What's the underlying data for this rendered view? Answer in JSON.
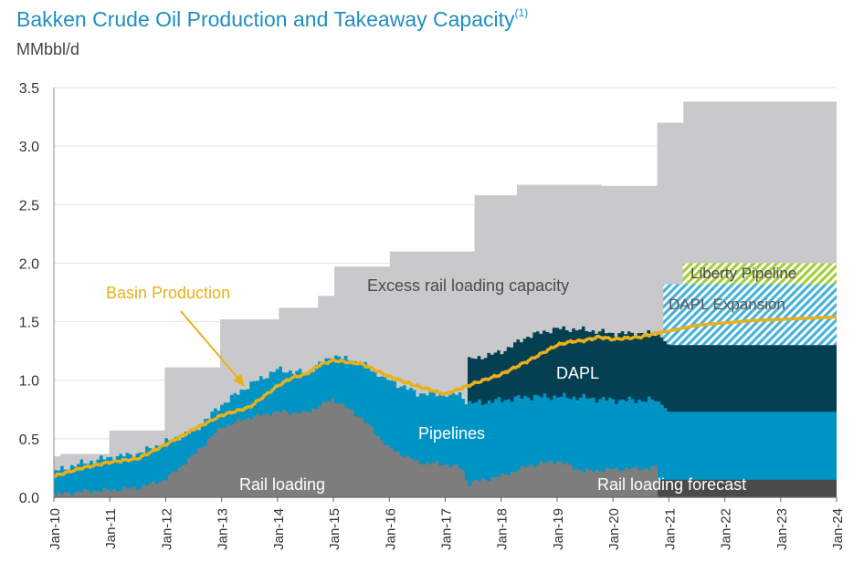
{
  "title": "Bakken Crude Oil Production and Takeaway Capacity",
  "title_superscript": "(1)",
  "unit": "MMbbl/d",
  "colors": {
    "rail_capacity": "#c9c9cb",
    "rail_loading": "#7d7d7d",
    "rail_forecast": "#4a4a4a",
    "pipelines": "#0094c4",
    "dapl": "#053f52",
    "dapl_expansion": "#49b2d8",
    "liberty": "#a5cd3a",
    "production": "#e8b01a"
  },
  "chart_data": {
    "type": "area",
    "x_ticks": [
      "Jan-10",
      "Jan-11",
      "Jan-12",
      "Jan-13",
      "Jan-14",
      "Jan-15",
      "Jan-16",
      "Jan-17",
      "Jan-18",
      "Jan-19",
      "Jan-20",
      "Jan-21",
      "Jan-22",
      "Jan-23",
      "Jan-24"
    ],
    "y_ticks": [
      "0.0",
      "0.5",
      "1.0",
      "1.5",
      "2.0",
      "2.5",
      "3.0",
      "3.5"
    ],
    "ylim": [
      0,
      3.5
    ],
    "x_range": [
      2010,
      2024
    ],
    "grid": "horizontal",
    "total_capacity": {
      "x": [
        2010,
        2010.1,
        2011,
        2012,
        2013,
        2014,
        2014.75,
        2015,
        2016,
        2017.4,
        2017.5,
        2018.3,
        2019.75,
        2019.8,
        2020.8,
        2021.25,
        2024
      ],
      "values": [
        0.35,
        0.37,
        0.57,
        1.11,
        1.52,
        1.62,
        1.72,
        1.97,
        2.1,
        2.1,
        2.58,
        2.67,
        2.67,
        2.66,
        3.2,
        3.38,
        3.38
      ]
    },
    "pipelines": {
      "x": [
        2010,
        2010.5,
        2011,
        2011.5,
        2012,
        2012.5,
        2013,
        2013.5,
        2014,
        2014.5,
        2015,
        2015.5,
        2016,
        2016.5,
        2017,
        2017.3,
        2017.4,
        2018,
        2018.5,
        2019,
        2019.5,
        2020,
        2020.8,
        2021,
        2024
      ],
      "values": [
        0.22,
        0.29,
        0.34,
        0.37,
        0.47,
        0.56,
        0.79,
        0.96,
        1.09,
        1.06,
        1.21,
        1.14,
        1.0,
        0.89,
        0.88,
        0.88,
        0.8,
        0.83,
        0.86,
        0.86,
        0.85,
        0.83,
        0.83,
        0.73,
        0.73
      ]
    },
    "dapl": {
      "x": [
        2017.4,
        2018,
        2018.5,
        2019,
        2019.5,
        2020,
        2020.8,
        2021,
        2024
      ],
      "values": [
        1.17,
        1.24,
        1.38,
        1.44,
        1.43,
        1.4,
        1.4,
        1.3,
        1.3
      ]
    },
    "dapl_expansion": {
      "x_start": 2020.9,
      "x_end": 2024,
      "bottom": 1.29,
      "top": 1.82
    },
    "liberty_pipeline": {
      "x_start": 2021.25,
      "x_end": 2024,
      "bottom": 1.82,
      "top": 2.0
    },
    "rail_loading": {
      "x": [
        2010,
        2010.5,
        2011,
        2011.5,
        2012,
        2012.5,
        2013,
        2013.5,
        2014,
        2014.5,
        2015,
        2015.5,
        2016,
        2016.5,
        2017,
        2017.3,
        2017.4,
        2018,
        2018.5,
        2019,
        2019.5,
        2020,
        2020.8
      ],
      "values": [
        0.02,
        0.05,
        0.06,
        0.08,
        0.15,
        0.36,
        0.6,
        0.68,
        0.73,
        0.72,
        0.84,
        0.68,
        0.42,
        0.3,
        0.28,
        0.25,
        0.12,
        0.18,
        0.27,
        0.31,
        0.22,
        0.24,
        0.25
      ]
    },
    "rail_loading_forecast": {
      "x_start": 2020.8,
      "x_end": 2024,
      "value": 0.15
    },
    "production": {
      "x": [
        2010,
        2010.5,
        2011,
        2011.5,
        2012,
        2012.5,
        2013,
        2013.5,
        2014,
        2014.25,
        2014.5,
        2014.75,
        2015,
        2015.5,
        2016,
        2016.5,
        2017,
        2017.5,
        2018,
        2018.5,
        2019,
        2019.25,
        2019.5,
        2019.75,
        2020,
        2020.5,
        2020.75,
        2021,
        2021.5,
        2022,
        2022.5,
        2023,
        2023.5,
        2024
      ],
      "values": [
        0.18,
        0.25,
        0.3,
        0.33,
        0.45,
        0.58,
        0.7,
        0.77,
        0.95,
        1.02,
        1.05,
        1.13,
        1.17,
        1.14,
        1.03,
        0.95,
        0.88,
        0.97,
        1.05,
        1.17,
        1.3,
        1.33,
        1.34,
        1.37,
        1.35,
        1.37,
        1.4,
        1.42,
        1.47,
        1.49,
        1.51,
        1.52,
        1.53,
        1.54
      ]
    },
    "labels": {
      "excess": "Excess rail loading capacity",
      "liberty": "Liberty Pipeline",
      "dapl_expansion": "DAPL Expansion",
      "dapl": "DAPL",
      "pipelines": "Pipelines",
      "rail_loading": "Rail loading",
      "rail_forecast": "Rail loading forecast",
      "production": "Basin Production"
    }
  }
}
